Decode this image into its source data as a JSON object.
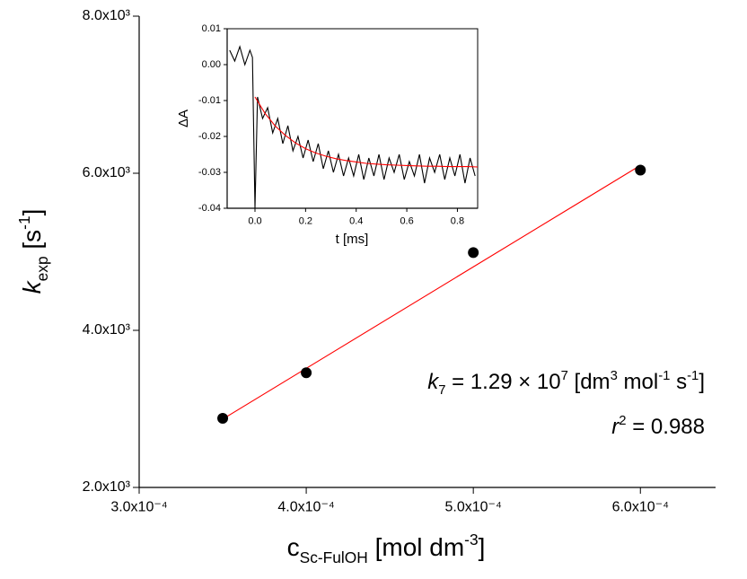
{
  "chart_data": [
    {
      "type": "scatter",
      "x_label": [
        {
          "text": "c",
          "style": "normal"
        },
        {
          "text": "Sc-FulOH",
          "style": "sub"
        },
        {
          "text": " [mol dm",
          "style": "normal"
        },
        {
          "text": "-3",
          "style": "sup"
        },
        {
          "text": "]",
          "style": "normal"
        }
      ],
      "y_label": [
        {
          "text": "k",
          "style": "italic"
        },
        {
          "text": "exp",
          "style": "sub"
        },
        {
          "text": " [s",
          "style": "normal"
        },
        {
          "text": "-1",
          "style": "sup"
        },
        {
          "text": "]",
          "style": "normal"
        }
      ],
      "annotations": [
        [
          {
            "text": "k",
            "style": "italic"
          },
          {
            "text": "7",
            "style": "sub"
          },
          {
            "text": " = 1.29 × 10",
            "style": "normal"
          },
          {
            "text": "7",
            "style": "sup"
          },
          {
            "text": " [dm",
            "style": "normal"
          },
          {
            "text": "3",
            "style": "sup"
          },
          {
            "text": " mol",
            "style": "normal"
          },
          {
            "text": "-1",
            "style": "sup"
          },
          {
            "text": " s",
            "style": "normal"
          },
          {
            "text": "-1",
            "style": "sup"
          },
          {
            "text": "]",
            "style": "normal"
          }
        ],
        [
          {
            "text": "r",
            "style": "italic"
          },
          {
            "text": "2",
            "style": "sup"
          },
          {
            "text": " = 0.988",
            "style": "normal"
          }
        ]
      ],
      "xlim": [
        0.0003,
        0.000645
      ],
      "ylim": [
        2000,
        8000
      ],
      "xticks": [
        {
          "value": 0.0003,
          "label": "3.0x10⁻⁴"
        },
        {
          "value": 0.0004,
          "label": "4.0x10⁻⁴"
        },
        {
          "value": 0.0005,
          "label": "5.0x10⁻⁴"
        },
        {
          "value": 0.0006,
          "label": "6.0x10⁻⁴"
        }
      ],
      "yticks": [
        {
          "value": 2000,
          "label": "2.0x10³"
        },
        {
          "value": 4000,
          "label": "4.0x10³"
        },
        {
          "value": 6000,
          "label": "6.0x10³"
        },
        {
          "value": 8000,
          "label": "8.0x10³"
        }
      ],
      "frame": false,
      "series": [
        {
          "type": "scatter",
          "color": "#000000",
          "x": [
            0.00035,
            0.0004,
            0.0005,
            0.0006
          ],
          "values": [
            2880,
            3460,
            4990,
            6040
          ]
        },
        {
          "type": "line",
          "color": "#ff0000",
          "x": [
            0.00035,
            0.0006
          ],
          "values": [
            2870,
            6100
          ]
        }
      ]
    },
    {
      "type": "line",
      "x_label": [
        {
          "text": "t [ms]",
          "style": "normal"
        }
      ],
      "y_label": [
        {
          "text": "ΔA",
          "style": "normal"
        }
      ],
      "xlim": [
        -0.11,
        0.88
      ],
      "ylim": [
        -0.04,
        0.01
      ],
      "xticks": [
        {
          "value": 0,
          "label": "0.0"
        },
        0.2,
        0.4,
        0.6,
        0.8
      ],
      "yticks": [
        0.01,
        {
          "value": 0,
          "label": "0.00"
        },
        -0.01,
        -0.02,
        -0.03,
        -0.04
      ],
      "frame": true,
      "series": [
        {
          "type": "line",
          "color": "#000000",
          "x": [
            -0.1,
            -0.08,
            -0.06,
            -0.04,
            -0.02,
            -0.01,
            0,
            0.01,
            0.03,
            0.05,
            0.07,
            0.09,
            0.11,
            0.13,
            0.15,
            0.17,
            0.19,
            0.21,
            0.23,
            0.25,
            0.27,
            0.29,
            0.31,
            0.33,
            0.35,
            0.37,
            0.39,
            0.41,
            0.43,
            0.45,
            0.47,
            0.49,
            0.51,
            0.53,
            0.55,
            0.57,
            0.59,
            0.61,
            0.63,
            0.65,
            0.67,
            0.69,
            0.71,
            0.73,
            0.75,
            0.77,
            0.79,
            0.81,
            0.83,
            0.85,
            0.87
          ],
          "values": [
            0.004,
            0.001,
            0.005,
            0.0,
            0.004,
            0.002,
            -0.04,
            -0.009,
            -0.015,
            -0.012,
            -0.019,
            -0.015,
            -0.022,
            -0.017,
            -0.024,
            -0.02,
            -0.026,
            -0.021,
            -0.027,
            -0.022,
            -0.029,
            -0.024,
            -0.03,
            -0.025,
            -0.031,
            -0.026,
            -0.031,
            -0.025,
            -0.032,
            -0.026,
            -0.031,
            -0.025,
            -0.032,
            -0.026,
            -0.03,
            -0.025,
            -0.032,
            -0.027,
            -0.031,
            -0.025,
            -0.033,
            -0.026,
            -0.03,
            -0.025,
            -0.032,
            -0.026,
            -0.031,
            -0.025,
            -0.033,
            -0.026,
            -0.031
          ]
        },
        {
          "type": "line",
          "color": "#ff0000",
          "x": [
            0,
            0.04,
            0.08,
            0.12,
            0.16,
            0.2,
            0.24,
            0.28,
            0.32,
            0.36,
            0.4,
            0.44,
            0.48,
            0.52,
            0.56,
            0.6,
            0.64,
            0.68,
            0.72,
            0.76,
            0.8,
            0.84,
            0.88
          ],
          "values": [
            -0.009,
            -0.0136,
            -0.0171,
            -0.0197,
            -0.0218,
            -0.0234,
            -0.0246,
            -0.0255,
            -0.0262,
            -0.0267,
            -0.0271,
            -0.0275,
            -0.0277,
            -0.0279,
            -0.028,
            -0.0281,
            -0.0282,
            -0.0283,
            -0.0283,
            -0.0284,
            -0.0284,
            -0.0284,
            -0.0285
          ]
        }
      ]
    }
  ]
}
